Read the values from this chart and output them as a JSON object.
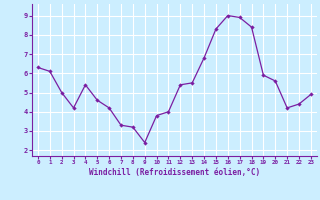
{
  "x": [
    0,
    1,
    2,
    3,
    4,
    5,
    6,
    7,
    8,
    9,
    10,
    11,
    12,
    13,
    14,
    15,
    16,
    17,
    18,
    19,
    20,
    21,
    22,
    23
  ],
  "y": [
    6.3,
    6.1,
    5.0,
    4.2,
    5.4,
    4.6,
    4.2,
    3.3,
    3.2,
    2.4,
    3.8,
    4.0,
    5.4,
    5.5,
    6.8,
    8.3,
    9.0,
    8.9,
    8.4,
    5.9,
    5.6,
    4.2,
    4.4,
    4.9
  ],
  "line_color": "#7B1FA2",
  "marker_color": "#7B1FA2",
  "bg_color": "#cceeff",
  "grid_color": "#ffffff",
  "xlabel": "Windchill (Refroidissement éolien,°C)",
  "xlabel_color": "#7B1FA2",
  "tick_color": "#7B1FA2",
  "spine_color": "#7B1FA2",
  "xtick_vals": [
    0,
    1,
    2,
    3,
    4,
    5,
    6,
    7,
    8,
    9,
    10,
    11,
    12,
    13,
    14,
    15,
    16,
    17,
    18,
    19,
    20,
    21,
    22,
    23
  ],
  "xtick_labels": [
    "0",
    "1",
    "2",
    "3",
    "4",
    "5",
    "6",
    "7",
    "8",
    "9",
    "10",
    "11",
    "12",
    "13",
    "14",
    "15",
    "16",
    "17",
    "18",
    "19",
    "20",
    "21",
    "22",
    "23"
  ],
  "ytick_vals": [
    2,
    3,
    4,
    5,
    6,
    7,
    8,
    9
  ],
  "ytick_labels": [
    "2",
    "3",
    "4",
    "5",
    "6",
    "7",
    "8",
    "9"
  ],
  "ylim": [
    1.7,
    9.6
  ],
  "xlim": [
    -0.5,
    23.5
  ]
}
